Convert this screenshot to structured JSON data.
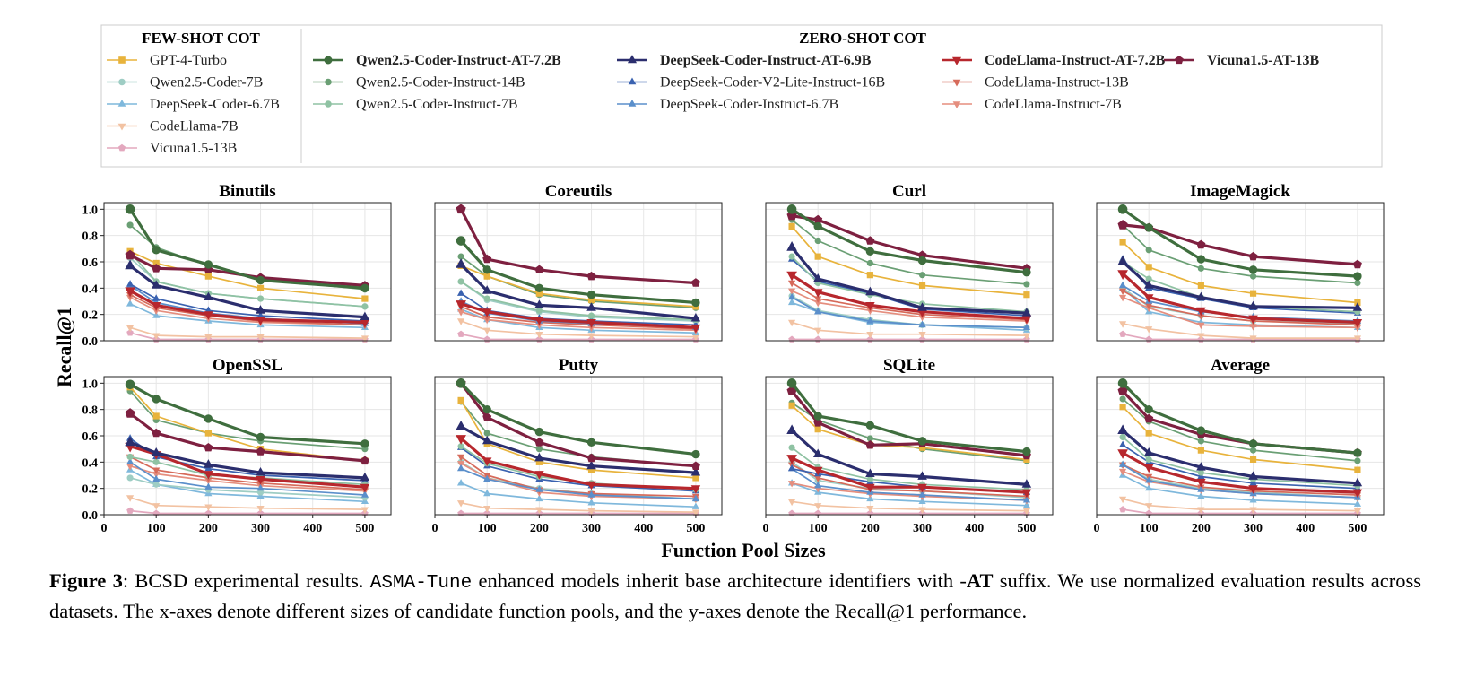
{
  "legend": {
    "few_shot_title": "FEW-SHOT COT",
    "zero_shot_title": "ZERO-SHOT COT"
  },
  "series": [
    {
      "key": "gpt4",
      "name": "GPT-4-Turbo",
      "group": "few",
      "color": "#E8B33C",
      "marker": "square",
      "bold": false
    },
    {
      "key": "q7b",
      "name": "Qwen2.5-Coder-7B",
      "group": "few",
      "color": "#9ECDC4",
      "marker": "circle",
      "bold": false
    },
    {
      "key": "ds67b",
      "name": "DeepSeek-Coder-6.7B",
      "group": "few",
      "color": "#7FB8DC",
      "marker": "triangle-up",
      "bold": false
    },
    {
      "key": "cl7b",
      "name": "CodeLlama-7B",
      "group": "few",
      "color": "#F2C2A2",
      "marker": "triangle-down",
      "bold": false
    },
    {
      "key": "vic13b",
      "name": "Vicuna1.5-13B",
      "group": "few",
      "color": "#E3A8BE",
      "marker": "pentagon",
      "bold": false
    },
    {
      "key": "qat",
      "name": "Qwen2.5-Coder-Instruct-AT-7.2B",
      "group": "zero",
      "color": "#3F6E3E",
      "marker": "circle",
      "bold": true
    },
    {
      "key": "q14i",
      "name": "Qwen2.5-Coder-Instruct-14B",
      "group": "zero",
      "color": "#6A9F74",
      "marker": "circle",
      "bold": false
    },
    {
      "key": "q7i",
      "name": "Qwen2.5-Coder-Instruct-7B",
      "group": "zero",
      "color": "#8FC2A3",
      "marker": "circle",
      "bold": false
    },
    {
      "key": "dsat",
      "name": "DeepSeek-Coder-Instruct-AT-6.9B",
      "group": "zero",
      "color": "#2B2E6E",
      "marker": "triangle-up",
      "bold": true
    },
    {
      "key": "dsv2",
      "name": "DeepSeek-Coder-V2-Lite-Instruct-16B",
      "group": "zero",
      "color": "#3A62B0",
      "marker": "triangle-up",
      "bold": false
    },
    {
      "key": "ds67i",
      "name": "DeepSeek-Coder-Instruct-6.7B",
      "group": "zero",
      "color": "#5B8FCB",
      "marker": "triangle-up",
      "bold": false
    },
    {
      "key": "clat",
      "name": "CodeLlama-Instruct-AT-7.2B",
      "group": "zero",
      "color": "#B7272D",
      "marker": "triangle-down",
      "bold": true
    },
    {
      "key": "cl13i",
      "name": "CodeLlama-Instruct-13B",
      "group": "zero",
      "color": "#D66A5A",
      "marker": "triangle-down",
      "bold": false
    },
    {
      "key": "cl7i",
      "name": "CodeLlama-Instruct-7B",
      "group": "zero",
      "color": "#E58E7E",
      "marker": "triangle-down",
      "bold": false
    },
    {
      "key": "vicat",
      "name": "Vicuna1.5-AT-13B",
      "group": "zero",
      "color": "#7E2040",
      "marker": "pentagon",
      "bold": true
    }
  ],
  "axes": {
    "xlabel": "Function Pool Sizes",
    "ylabel": "Recall@1",
    "xticks": [
      "0",
      "100",
      "200",
      "300",
      "400",
      "500"
    ],
    "yticks": [
      "0.0",
      "0.2",
      "0.4",
      "0.6",
      "0.8",
      "1.0"
    ],
    "xlim": [
      0,
      550
    ],
    "ylim": [
      0,
      1.05
    ]
  },
  "chart_data": {
    "type": "line",
    "x": [
      50,
      100,
      200,
      300,
      500
    ],
    "xlabel": "Function Pool Sizes",
    "ylabel": "Recall@1",
    "grid": true,
    "legend_placement": "top",
    "panels": [
      {
        "title": "Binutils",
        "series": {
          "gpt4": [
            0.68,
            0.59,
            0.49,
            0.4,
            0.32
          ],
          "q7b": [
            0.63,
            0.45,
            0.36,
            0.32,
            0.26
          ],
          "ds67b": [
            0.28,
            0.19,
            0.15,
            0.12,
            0.1
          ],
          "cl7b": [
            0.1,
            0.04,
            0.03,
            0.03,
            0.02
          ],
          "vic13b": [
            0.06,
            0.01,
            0.01,
            0.01,
            0.01
          ],
          "qat": [
            1.0,
            0.69,
            0.58,
            0.46,
            0.4
          ],
          "q14i": [
            0.88,
            0.71,
            0.57,
            0.47,
            0.39
          ],
          "q7i": [
            0.67,
            0.45,
            0.36,
            0.32,
            0.26
          ],
          "dsat": [
            0.57,
            0.42,
            0.33,
            0.23,
            0.18
          ],
          "dsv2": [
            0.43,
            0.32,
            0.23,
            0.19,
            0.15
          ],
          "ds67i": [
            0.42,
            0.29,
            0.21,
            0.17,
            0.13
          ],
          "clat": [
            0.38,
            0.27,
            0.2,
            0.16,
            0.14
          ],
          "cl13i": [
            0.35,
            0.25,
            0.19,
            0.15,
            0.12
          ],
          "cl7i": [
            0.33,
            0.23,
            0.17,
            0.14,
            0.12
          ],
          "vicat": [
            0.65,
            0.55,
            0.54,
            0.48,
            0.42
          ]
        }
      },
      {
        "title": "Coreutils",
        "series": {
          "gpt4": [
            0.57,
            0.49,
            0.36,
            0.31,
            0.26
          ],
          "q7b": [
            0.45,
            0.31,
            0.22,
            0.18,
            0.15
          ],
          "ds67b": [
            0.24,
            0.16,
            0.1,
            0.08,
            0.06
          ],
          "cl7b": [
            0.15,
            0.08,
            0.05,
            0.04,
            0.03
          ],
          "vic13b": [
            0.05,
            0.01,
            0.01,
            0.01,
            0.01
          ],
          "qat": [
            0.76,
            0.54,
            0.4,
            0.35,
            0.29
          ],
          "q14i": [
            0.64,
            0.49,
            0.35,
            0.3,
            0.25
          ],
          "q7i": [
            0.45,
            0.32,
            0.23,
            0.19,
            0.16
          ],
          "dsat": [
            0.58,
            0.38,
            0.27,
            0.25,
            0.17
          ],
          "dsv2": [
            0.36,
            0.23,
            0.17,
            0.15,
            0.12
          ],
          "ds67i": [
            0.3,
            0.21,
            0.15,
            0.13,
            0.1
          ],
          "clat": [
            0.28,
            0.22,
            0.16,
            0.14,
            0.1
          ],
          "cl13i": [
            0.26,
            0.18,
            0.14,
            0.12,
            0.09
          ],
          "cl7i": [
            0.22,
            0.16,
            0.12,
            0.1,
            0.08
          ],
          "vicat": [
            1.0,
            0.62,
            0.54,
            0.49,
            0.44
          ]
        }
      },
      {
        "title": "Curl",
        "series": {
          "gpt4": [
            0.87,
            0.64,
            0.5,
            0.42,
            0.35
          ],
          "q7b": [
            0.34,
            0.23,
            0.16,
            0.12,
            0.1
          ],
          "ds67b": [
            0.29,
            0.22,
            0.14,
            0.12,
            0.08
          ],
          "cl7b": [
            0.14,
            0.08,
            0.05,
            0.05,
            0.04
          ],
          "vic13b": [
            0.01,
            0.01,
            0.01,
            0.01,
            0.01
          ],
          "qat": [
            1.0,
            0.87,
            0.68,
            0.61,
            0.52
          ],
          "q14i": [
            0.92,
            0.76,
            0.59,
            0.5,
            0.43
          ],
          "q7i": [
            0.64,
            0.44,
            0.35,
            0.28,
            0.22
          ],
          "dsat": [
            0.71,
            0.47,
            0.37,
            0.25,
            0.21
          ],
          "dsv2": [
            0.62,
            0.45,
            0.36,
            0.24,
            0.19
          ],
          "ds67i": [
            0.33,
            0.22,
            0.15,
            0.12,
            0.1
          ],
          "clat": [
            0.5,
            0.37,
            0.27,
            0.22,
            0.17
          ],
          "cl13i": [
            0.44,
            0.32,
            0.25,
            0.2,
            0.16
          ],
          "cl7i": [
            0.38,
            0.29,
            0.23,
            0.18,
            0.15
          ],
          "vicat": [
            0.95,
            0.92,
            0.76,
            0.65,
            0.55
          ]
        }
      },
      {
        "title": "ImageMagick",
        "series": {
          "gpt4": [
            0.75,
            0.56,
            0.42,
            0.36,
            0.29
          ],
          "q7b": [
            0.4,
            0.26,
            0.19,
            0.15,
            0.13
          ],
          "ds67b": [
            0.4,
            0.22,
            0.14,
            0.12,
            0.1
          ],
          "cl7b": [
            0.13,
            0.09,
            0.04,
            0.02,
            0.02
          ],
          "vic13b": [
            0.05,
            0.01,
            0.01,
            0.01,
            0.01
          ],
          "qat": [
            1.0,
            0.86,
            0.62,
            0.54,
            0.49
          ],
          "q14i": [
            0.88,
            0.69,
            0.55,
            0.49,
            0.44
          ],
          "q7i": [
            0.6,
            0.47,
            0.33,
            0.26,
            0.22
          ],
          "dsat": [
            0.6,
            0.42,
            0.33,
            0.26,
            0.25
          ],
          "dsv2": [
            0.62,
            0.4,
            0.32,
            0.25,
            0.21
          ],
          "ds67i": [
            0.42,
            0.3,
            0.22,
            0.18,
            0.15
          ],
          "clat": [
            0.51,
            0.33,
            0.23,
            0.17,
            0.14
          ],
          "cl13i": [
            0.38,
            0.27,
            0.19,
            0.15,
            0.12
          ],
          "cl7i": [
            0.33,
            0.25,
            0.12,
            0.11,
            0.1
          ],
          "vicat": [
            0.88,
            0.86,
            0.73,
            0.64,
            0.58
          ]
        }
      },
      {
        "title": "OpenSSL",
        "series": {
          "gpt4": [
            0.97,
            0.75,
            0.62,
            0.5,
            0.41
          ],
          "q7b": [
            0.28,
            0.23,
            0.19,
            0.17,
            0.13
          ],
          "ds67b": [
            0.34,
            0.23,
            0.16,
            0.14,
            0.1
          ],
          "cl7b": [
            0.13,
            0.07,
            0.06,
            0.05,
            0.04
          ],
          "vic13b": [
            0.03,
            0.01,
            0.01,
            0.01,
            0.01
          ],
          "qat": [
            0.99,
            0.88,
            0.73,
            0.59,
            0.54
          ],
          "q14i": [
            0.94,
            0.72,
            0.62,
            0.56,
            0.5
          ],
          "q7i": [
            0.44,
            0.4,
            0.3,
            0.28,
            0.23
          ],
          "dsat": [
            0.55,
            0.47,
            0.38,
            0.32,
            0.28
          ],
          "dsv2": [
            0.58,
            0.44,
            0.35,
            0.3,
            0.26
          ],
          "ds67i": [
            0.4,
            0.27,
            0.21,
            0.2,
            0.15
          ],
          "clat": [
            0.52,
            0.46,
            0.31,
            0.27,
            0.21
          ],
          "cl13i": [
            0.44,
            0.34,
            0.28,
            0.24,
            0.19
          ],
          "cl7i": [
            0.37,
            0.31,
            0.26,
            0.22,
            0.18
          ],
          "vicat": [
            0.77,
            0.62,
            0.51,
            0.48,
            0.41
          ]
        }
      },
      {
        "title": "Putty",
        "series": {
          "gpt4": [
            0.87,
            0.54,
            0.4,
            0.34,
            0.28
          ],
          "q7b": [
            0.4,
            0.28,
            0.2,
            0.16,
            0.12
          ],
          "ds67b": [
            0.24,
            0.16,
            0.12,
            0.09,
            0.06
          ],
          "cl7b": [
            0.09,
            0.05,
            0.04,
            0.03,
            0.02
          ],
          "vic13b": [
            0.01,
            0.01,
            0.01,
            0.01,
            0.01
          ],
          "qat": [
            1.0,
            0.8,
            0.63,
            0.55,
            0.46
          ],
          "q14i": [
            0.86,
            0.62,
            0.5,
            0.44,
            0.37
          ],
          "q7i": [
            0.52,
            0.39,
            0.29,
            0.24,
            0.19
          ],
          "dsat": [
            0.67,
            0.56,
            0.43,
            0.37,
            0.32
          ],
          "dsv2": [
            0.51,
            0.37,
            0.27,
            0.22,
            0.18
          ],
          "ds67i": [
            0.35,
            0.27,
            0.19,
            0.15,
            0.12
          ],
          "clat": [
            0.58,
            0.41,
            0.31,
            0.23,
            0.2
          ],
          "cl13i": [
            0.44,
            0.3,
            0.19,
            0.16,
            0.14
          ],
          "cl7i": [
            0.39,
            0.28,
            0.17,
            0.14,
            0.12
          ],
          "vicat": [
            1.0,
            0.74,
            0.55,
            0.43,
            0.37
          ]
        }
      },
      {
        "title": "SQLite",
        "series": {
          "gpt4": [
            0.83,
            0.65,
            0.53,
            0.51,
            0.42
          ],
          "q7b": [
            0.4,
            0.26,
            0.2,
            0.18,
            0.13
          ],
          "ds67b": [
            0.24,
            0.17,
            0.12,
            0.1,
            0.07
          ],
          "cl7b": [
            0.1,
            0.07,
            0.05,
            0.04,
            0.03
          ],
          "vic13b": [
            0.01,
            0.01,
            0.01,
            0.01,
            0.01
          ],
          "qat": [
            1.0,
            0.75,
            0.68,
            0.56,
            0.48
          ],
          "q14i": [
            0.85,
            0.72,
            0.58,
            0.5,
            0.41
          ],
          "q7i": [
            0.51,
            0.36,
            0.27,
            0.23,
            0.19
          ],
          "dsat": [
            0.64,
            0.46,
            0.31,
            0.29,
            0.23
          ],
          "dsv2": [
            0.35,
            0.31,
            0.25,
            0.21,
            0.17
          ],
          "ds67i": [
            0.35,
            0.22,
            0.17,
            0.15,
            0.11
          ],
          "clat": [
            0.43,
            0.34,
            0.21,
            0.21,
            0.17
          ],
          "cl13i": [
            0.38,
            0.28,
            0.19,
            0.18,
            0.14
          ],
          "cl7i": [
            0.24,
            0.2,
            0.16,
            0.14,
            0.11
          ],
          "vicat": [
            0.94,
            0.7,
            0.53,
            0.54,
            0.45
          ]
        }
      },
      {
        "title": "Average",
        "series": {
          "gpt4": [
            0.82,
            0.62,
            0.49,
            0.42,
            0.34
          ],
          "q7b": [
            0.38,
            0.27,
            0.2,
            0.17,
            0.13
          ],
          "ds67b": [
            0.3,
            0.2,
            0.14,
            0.11,
            0.08
          ],
          "cl7b": [
            0.12,
            0.07,
            0.04,
            0.04,
            0.03
          ],
          "vic13b": [
            0.04,
            0.01,
            0.01,
            0.01,
            0.01
          ],
          "qat": [
            1.0,
            0.8,
            0.64,
            0.54,
            0.47
          ],
          "q14i": [
            0.88,
            0.71,
            0.56,
            0.49,
            0.41
          ],
          "q7i": [
            0.59,
            0.42,
            0.32,
            0.27,
            0.22
          ],
          "dsat": [
            0.64,
            0.47,
            0.36,
            0.29,
            0.24
          ],
          "dsv2": [
            0.53,
            0.4,
            0.29,
            0.24,
            0.2
          ],
          "ds67i": [
            0.38,
            0.26,
            0.19,
            0.16,
            0.13
          ],
          "clat": [
            0.47,
            0.36,
            0.25,
            0.2,
            0.17
          ],
          "cl13i": [
            0.38,
            0.29,
            0.21,
            0.18,
            0.15
          ],
          "cl7i": [
            0.33,
            0.25,
            0.19,
            0.16,
            0.13
          ],
          "vicat": [
            0.94,
            0.73,
            0.61,
            0.54,
            0.47
          ]
        }
      }
    ]
  },
  "caption": {
    "label": "Figure 3",
    "p1": ": BCSD experimental results. ",
    "tool": "ASMA-Tune",
    "p2": " enhanced models inherit base architecture identifiers with -",
    "at": "AT",
    "p3": " suffix. We use normalized evaluation results across datasets. The x-axes denote different sizes of candidate function pools, and the y-axes denote the Recall@1 performance."
  }
}
